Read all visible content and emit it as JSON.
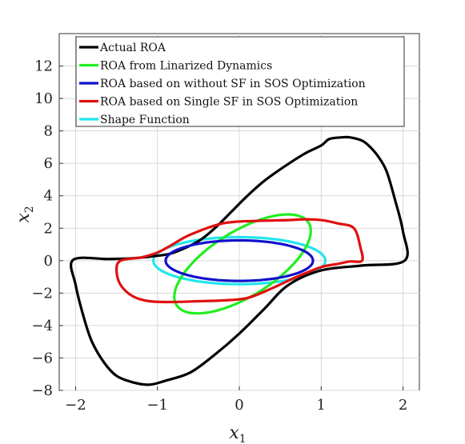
{
  "chart_data": {
    "type": "line",
    "title": "",
    "xlabel": "x",
    "xlabel_sub": "1",
    "ylabel": "x",
    "ylabel_sub": "2",
    "xlim": [
      -2.2,
      2.2
    ],
    "ylim": [
      -8,
      14
    ],
    "xticks": [
      -2,
      -1,
      0,
      1,
      2
    ],
    "yticks": [
      -8,
      -6,
      -4,
      -2,
      0,
      2,
      4,
      6,
      8,
      10,
      12
    ],
    "grid": true,
    "legend_position": "top",
    "series": [
      {
        "name": "Actual ROA",
        "color": "#000000",
        "closed": true,
        "x": [
          2.02,
          2.0,
          1.9,
          1.8,
          1.7,
          1.6,
          1.5,
          1.35,
          1.25,
          1.1,
          1.0,
          0.8,
          0.55,
          0.3,
          0.1,
          -0.1,
          -0.3,
          -0.5,
          -0.8,
          -1.0,
          -1.3,
          -1.6,
          -2.03,
          -2.0,
          -1.9,
          -1.8,
          -1.65,
          -1.5,
          -1.3,
          -1.1,
          -0.9,
          -0.6,
          -0.3,
          0.0,
          0.3,
          0.6,
          1.0,
          1.5
        ],
        "y": [
          0.0,
          1.8,
          3.8,
          5.5,
          6.4,
          7.0,
          7.4,
          7.6,
          7.6,
          7.5,
          7.1,
          6.6,
          5.8,
          4.9,
          4.0,
          3.0,
          2.0,
          1.2,
          0.5,
          0.3,
          0.15,
          0.1,
          0.05,
          -1.5,
          -3.5,
          -5.0,
          -6.3,
          -7.1,
          -7.5,
          -7.65,
          -7.4,
          -6.9,
          -5.8,
          -4.5,
          -3.0,
          -1.5,
          -0.6,
          -0.3
        ]
      },
      {
        "name": "ROA from Linarized Dynamics",
        "color": "#22ee22",
        "closed": true,
        "ellipse": {
          "cx": 0.04,
          "cy": -0.2,
          "a": 1.0,
          "b": 0.23,
          "angle_deg": 74
        }
      },
      {
        "name": "ROA based on without SF in SOS Optimization",
        "color": "#1010cc",
        "closed": true,
        "ellipse": {
          "cx": 0.0,
          "cy": 0.0,
          "a": 0.9,
          "b": 1.25,
          "angle_deg": 0
        }
      },
      {
        "name": "ROA based on Single SF in SOS Optimization",
        "color": "#e01010",
        "closed": true,
        "x": [
          1.5,
          1.48,
          1.4,
          1.2,
          1.0,
          0.8,
          0.6,
          0.2,
          -0.2,
          -0.6,
          -0.85,
          -1.0,
          -1.2,
          -1.45,
          -1.5,
          -1.45,
          -1.3,
          -1.1,
          -0.8,
          -0.5,
          -0.2,
          0.1,
          0.4,
          0.7,
          1.0,
          1.2,
          1.35
        ],
        "y": [
          0.0,
          0.8,
          2.0,
          2.3,
          2.5,
          2.55,
          2.5,
          2.45,
          2.3,
          1.6,
          0.9,
          0.5,
          0.2,
          0.0,
          -0.6,
          -1.5,
          -2.2,
          -2.5,
          -2.55,
          -2.5,
          -2.45,
          -2.3,
          -1.7,
          -1.0,
          -0.4,
          -0.2,
          -0.05
        ]
      },
      {
        "name": "Shape Function",
        "color": "#22e5ee",
        "closed": true,
        "ellipse": {
          "cx": 0.0,
          "cy": 0.0,
          "a": 1.05,
          "b": 1.45,
          "angle_deg": 0
        }
      }
    ]
  }
}
